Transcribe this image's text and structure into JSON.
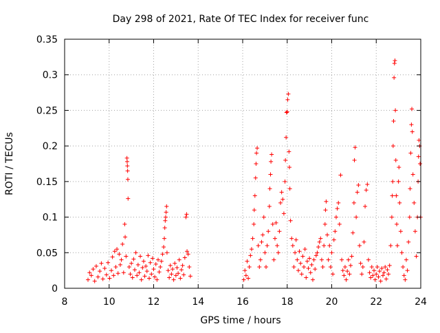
{
  "chart_data": {
    "type": "scatter",
    "title": "Day 298 of 2021, Rate Of TEC Index for receiver func",
    "xlabel": "GPS time / hours",
    "ylabel": "ROTI / TECUs",
    "xlim": [
      8,
      24
    ],
    "ylim": [
      0,
      0.35
    ],
    "xticks": [
      "8",
      "10",
      "12",
      "14",
      "16",
      "18",
      "20",
      "22",
      "24"
    ],
    "yticks": [
      "0",
      "0.05",
      "0.1",
      "0.15",
      "0.2",
      "0.25",
      "0.3",
      "0.35"
    ],
    "grid": true,
    "marker": "+",
    "color": "#ff0000",
    "points": [
      [
        9.05,
        0.012
      ],
      [
        9.12,
        0.022
      ],
      [
        9.2,
        0.018
      ],
      [
        9.28,
        0.027
      ],
      [
        9.35,
        0.01
      ],
      [
        9.42,
        0.031
      ],
      [
        9.5,
        0.016
      ],
      [
        9.58,
        0.024
      ],
      [
        9.65,
        0.035
      ],
      [
        9.72,
        0.013
      ],
      [
        9.8,
        0.028
      ],
      [
        9.88,
        0.019
      ],
      [
        9.95,
        0.036
      ],
      [
        10.02,
        0.014
      ],
      [
        10.1,
        0.025
      ],
      [
        10.15,
        0.044
      ],
      [
        10.2,
        0.018
      ],
      [
        10.25,
        0.052
      ],
      [
        10.3,
        0.03
      ],
      [
        10.35,
        0.055
      ],
      [
        10.4,
        0.021
      ],
      [
        10.45,
        0.048
      ],
      [
        10.5,
        0.033
      ],
      [
        10.55,
        0.04
      ],
      [
        10.6,
        0.062
      ],
      [
        10.65,
        0.022
      ],
      [
        10.7,
        0.09
      ],
      [
        10.72,
        0.072
      ],
      [
        10.76,
        0.045
      ],
      [
        10.8,
        0.183
      ],
      [
        10.81,
        0.178
      ],
      [
        10.82,
        0.172
      ],
      [
        10.83,
        0.165
      ],
      [
        10.84,
        0.153
      ],
      [
        10.85,
        0.126
      ],
      [
        10.9,
        0.03
      ],
      [
        10.95,
        0.02
      ],
      [
        11.0,
        0.035
      ],
      [
        11.05,
        0.015
      ],
      [
        11.1,
        0.041
      ],
      [
        11.15,
        0.026
      ],
      [
        11.2,
        0.05
      ],
      [
        11.25,
        0.018
      ],
      [
        11.3,
        0.033
      ],
      [
        11.35,
        0.022
      ],
      [
        11.4,
        0.045
      ],
      [
        11.45,
        0.012
      ],
      [
        11.5,
        0.029
      ],
      [
        11.55,
        0.038
      ],
      [
        11.6,
        0.017
      ],
      [
        11.65,
        0.031
      ],
      [
        11.7,
        0.024
      ],
      [
        11.75,
        0.046
      ],
      [
        11.8,
        0.014
      ],
      [
        11.85,
        0.036
      ],
      [
        11.9,
        0.02
      ],
      [
        11.95,
        0.042
      ],
      [
        12.0,
        0.027
      ],
      [
        12.05,
        0.016
      ],
      [
        12.1,
        0.034
      ],
      [
        12.15,
        0.012
      ],
      [
        12.2,
        0.04
      ],
      [
        12.25,
        0.023
      ],
      [
        12.3,
        0.03
      ],
      [
        12.35,
        0.038
      ],
      [
        12.4,
        0.048
      ],
      [
        12.45,
        0.058
      ],
      [
        12.48,
        0.07
      ],
      [
        12.5,
        0.085
      ],
      [
        12.52,
        0.095
      ],
      [
        12.54,
        0.1
      ],
      [
        12.56,
        0.107
      ],
      [
        12.58,
        0.115
      ],
      [
        12.6,
        0.05
      ],
      [
        12.65,
        0.025
      ],
      [
        12.7,
        0.015
      ],
      [
        12.75,
        0.032
      ],
      [
        12.8,
        0.02
      ],
      [
        12.85,
        0.027
      ],
      [
        12.9,
        0.012
      ],
      [
        12.95,
        0.035
      ],
      [
        13.0,
        0.018
      ],
      [
        13.05,
        0.029
      ],
      [
        13.1,
        0.021
      ],
      [
        13.15,
        0.04
      ],
      [
        13.2,
        0.014
      ],
      [
        13.25,
        0.026
      ],
      [
        13.3,
        0.032
      ],
      [
        13.35,
        0.019
      ],
      [
        13.4,
        0.043
      ],
      [
        13.45,
        0.1
      ],
      [
        13.48,
        0.104
      ],
      [
        13.5,
        0.052
      ],
      [
        13.55,
        0.048
      ],
      [
        13.6,
        0.03
      ],
      [
        13.65,
        0.017
      ],
      [
        16.05,
        0.012
      ],
      [
        16.1,
        0.025
      ],
      [
        16.15,
        0.018
      ],
      [
        16.2,
        0.038
      ],
      [
        16.25,
        0.014
      ],
      [
        16.3,
        0.03
      ],
      [
        16.35,
        0.046
      ],
      [
        16.4,
        0.055
      ],
      [
        16.45,
        0.07
      ],
      [
        16.5,
        0.09
      ],
      [
        16.52,
        0.11
      ],
      [
        16.55,
        0.13
      ],
      [
        16.58,
        0.155
      ],
      [
        16.6,
        0.175
      ],
      [
        16.62,
        0.19
      ],
      [
        16.65,
        0.197
      ],
      [
        16.7,
        0.06
      ],
      [
        16.75,
        0.03
      ],
      [
        16.8,
        0.04
      ],
      [
        16.85,
        0.065
      ],
      [
        16.9,
        0.075
      ],
      [
        16.95,
        0.1
      ],
      [
        17.0,
        0.05
      ],
      [
        17.05,
        0.03
      ],
      [
        17.1,
        0.06
      ],
      [
        17.15,
        0.08
      ],
      [
        17.2,
        0.115
      ],
      [
        17.22,
        0.14
      ],
      [
        17.25,
        0.16
      ],
      [
        17.27,
        0.178
      ],
      [
        17.3,
        0.188
      ],
      [
        17.35,
        0.09
      ],
      [
        17.4,
        0.04
      ],
      [
        17.45,
        0.07
      ],
      [
        17.5,
        0.092
      ],
      [
        17.55,
        0.06
      ],
      [
        17.6,
        0.05
      ],
      [
        17.65,
        0.08
      ],
      [
        17.7,
        0.12
      ],
      [
        17.75,
        0.135
      ],
      [
        17.8,
        0.125
      ],
      [
        17.85,
        0.105
      ],
      [
        17.9,
        0.15
      ],
      [
        17.92,
        0.18
      ],
      [
        17.95,
        0.212
      ],
      [
        17.97,
        0.247
      ],
      [
        18.0,
        0.248
      ],
      [
        18.02,
        0.265
      ],
      [
        18.05,
        0.273
      ],
      [
        18.08,
        0.192
      ],
      [
        18.1,
        0.17
      ],
      [
        18.12,
        0.14
      ],
      [
        18.15,
        0.095
      ],
      [
        18.2,
        0.07
      ],
      [
        18.25,
        0.06
      ],
      [
        18.3,
        0.03
      ],
      [
        18.35,
        0.05
      ],
      [
        18.4,
        0.068
      ],
      [
        18.45,
        0.04
      ],
      [
        18.5,
        0.025
      ],
      [
        18.55,
        0.052
      ],
      [
        18.6,
        0.035
      ],
      [
        18.65,
        0.02
      ],
      [
        18.7,
        0.045
      ],
      [
        18.75,
        0.03
      ],
      [
        18.8,
        0.055
      ],
      [
        18.85,
        0.015
      ],
      [
        18.9,
        0.038
      ],
      [
        18.95,
        0.028
      ],
      [
        19.0,
        0.042
      ],
      [
        19.05,
        0.022
      ],
      [
        19.1,
        0.033
      ],
      [
        19.15,
        0.012
      ],
      [
        19.2,
        0.04
      ],
      [
        19.25,
        0.027
      ],
      [
        19.3,
        0.046
      ],
      [
        19.35,
        0.05
      ],
      [
        19.4,
        0.058
      ],
      [
        19.45,
        0.065
      ],
      [
        19.5,
        0.07
      ],
      [
        19.55,
        0.04
      ],
      [
        19.6,
        0.03
      ],
      [
        19.65,
        0.06
      ],
      [
        19.7,
        0.09
      ],
      [
        19.72,
        0.11
      ],
      [
        19.75,
        0.122
      ],
      [
        19.8,
        0.075
      ],
      [
        19.85,
        0.04
      ],
      [
        19.9,
        0.06
      ],
      [
        19.95,
        0.03
      ],
      [
        20.0,
        0.05
      ],
      [
        20.05,
        0.02
      ],
      [
        20.1,
        0.068
      ],
      [
        20.15,
        0.08
      ],
      [
        20.2,
        0.1
      ],
      [
        20.25,
        0.112
      ],
      [
        20.3,
        0.12
      ],
      [
        20.35,
        0.09
      ],
      [
        20.4,
        0.159
      ],
      [
        20.45,
        0.04
      ],
      [
        20.5,
        0.025
      ],
      [
        20.55,
        0.018
      ],
      [
        20.6,
        0.03
      ],
      [
        20.65,
        0.012
      ],
      [
        20.7,
        0.024
      ],
      [
        20.75,
        0.04
      ],
      [
        20.8,
        0.02
      ],
      [
        20.85,
        0.032
      ],
      [
        20.9,
        0.045
      ],
      [
        20.95,
        0.078
      ],
      [
        21.0,
        0.12
      ],
      [
        21.02,
        0.18
      ],
      [
        21.05,
        0.198
      ],
      [
        21.1,
        0.1
      ],
      [
        21.15,
        0.135
      ],
      [
        21.2,
        0.145
      ],
      [
        21.25,
        0.06
      ],
      [
        21.3,
        0.035
      ],
      [
        21.35,
        0.02
      ],
      [
        21.4,
        0.03
      ],
      [
        21.45,
        0.065
      ],
      [
        21.5,
        0.115
      ],
      [
        21.55,
        0.138
      ],
      [
        21.6,
        0.146
      ],
      [
        21.65,
        0.04
      ],
      [
        21.7,
        0.022
      ],
      [
        21.75,
        0.015
      ],
      [
        21.8,
        0.03
      ],
      [
        21.85,
        0.018
      ],
      [
        21.9,
        0.025
      ],
      [
        21.95,
        0.012
      ],
      [
        22.0,
        0.02
      ],
      [
        22.05,
        0.03
      ],
      [
        22.1,
        0.016
      ],
      [
        22.15,
        0.024
      ],
      [
        22.2,
        0.01
      ],
      [
        22.25,
        0.028
      ],
      [
        22.3,
        0.018
      ],
      [
        22.35,
        0.022
      ],
      [
        22.4,
        0.03
      ],
      [
        22.45,
        0.013
      ],
      [
        22.5,
        0.026
      ],
      [
        22.55,
        0.02
      ],
      [
        22.6,
        0.032
      ],
      [
        22.65,
        0.06
      ],
      [
        22.7,
        0.1
      ],
      [
        22.72,
        0.13
      ],
      [
        22.74,
        0.15
      ],
      [
        22.76,
        0.2
      ],
      [
        22.78,
        0.235
      ],
      [
        22.8,
        0.296
      ],
      [
        22.82,
        0.316
      ],
      [
        22.84,
        0.32
      ],
      [
        22.86,
        0.25
      ],
      [
        22.88,
        0.18
      ],
      [
        22.9,
        0.13
      ],
      [
        22.92,
        0.09
      ],
      [
        22.95,
        0.06
      ],
      [
        23.0,
        0.15
      ],
      [
        23.02,
        0.17
      ],
      [
        23.05,
        0.12
      ],
      [
        23.1,
        0.08
      ],
      [
        23.15,
        0.05
      ],
      [
        23.2,
        0.03
      ],
      [
        23.25,
        0.018
      ],
      [
        23.3,
        0.012
      ],
      [
        23.35,
        0.04
      ],
      [
        23.4,
        0.025
      ],
      [
        23.45,
        0.065
      ],
      [
        23.5,
        0.1
      ],
      [
        23.52,
        0.14
      ],
      [
        23.55,
        0.19
      ],
      [
        23.58,
        0.23
      ],
      [
        23.6,
        0.252
      ],
      [
        23.62,
        0.22
      ],
      [
        23.65,
        0.16
      ],
      [
        23.7,
        0.12
      ],
      [
        23.75,
        0.08
      ],
      [
        23.8,
        0.045
      ],
      [
        23.85,
        0.1
      ],
      [
        23.88,
        0.15
      ],
      [
        23.9,
        0.185
      ],
      [
        23.92,
        0.208
      ],
      [
        23.95,
        0.2
      ],
      [
        23.97,
        0.175
      ],
      [
        23.99,
        0.1
      ]
    ]
  }
}
